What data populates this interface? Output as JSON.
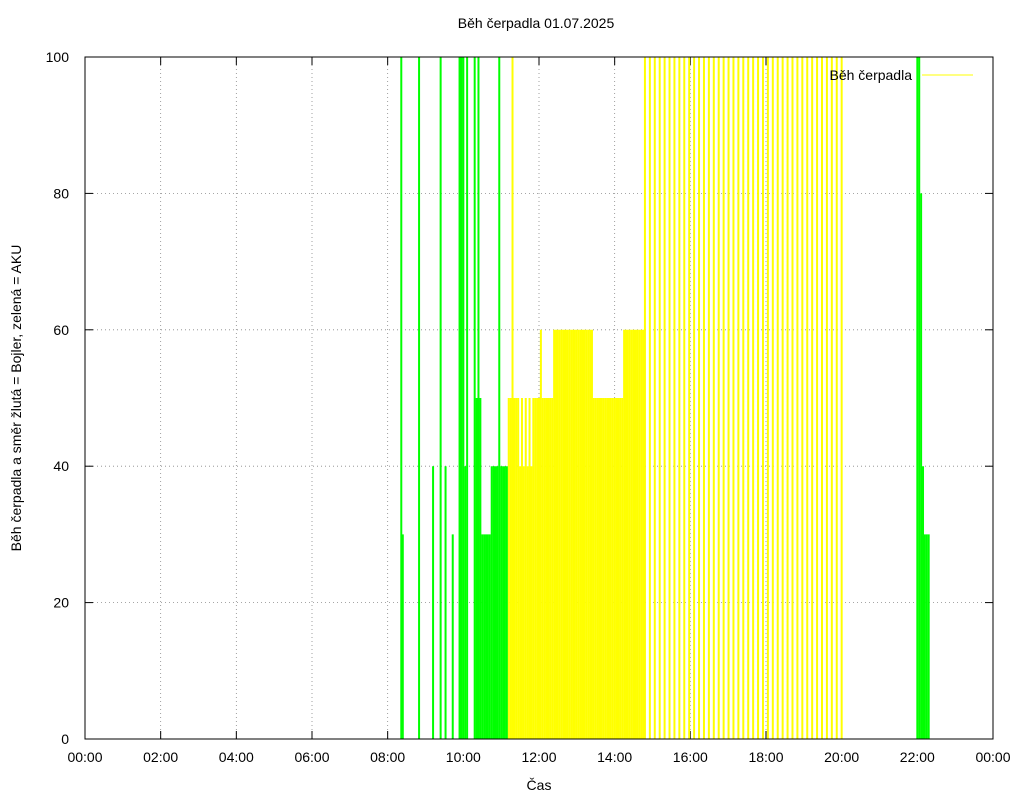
{
  "chart_data": {
    "type": "impulse",
    "title": "Běh čerpadla 01.07.2025",
    "xlabel": "Čas",
    "ylabel": "Běh čerpadla a směr žlutá = Bojler, zelená = AKU",
    "xlim": [
      0,
      24
    ],
    "xticks": [
      {
        "value": 0,
        "label": "00:00"
      },
      {
        "value": 2,
        "label": "02:00"
      },
      {
        "value": 4,
        "label": "04:00"
      },
      {
        "value": 6,
        "label": "06:00"
      },
      {
        "value": 8,
        "label": "08:00"
      },
      {
        "value": 10,
        "label": "10:00"
      },
      {
        "value": 12,
        "label": "12:00"
      },
      {
        "value": 14,
        "label": "14:00"
      },
      {
        "value": 16,
        "label": "16:00"
      },
      {
        "value": 18,
        "label": "18:00"
      },
      {
        "value": 20,
        "label": "20:00"
      },
      {
        "value": 22,
        "label": "22:00"
      },
      {
        "value": 24,
        "label": "00:00"
      }
    ],
    "ylim": [
      0,
      100
    ],
    "yticks": [
      0,
      20,
      40,
      60,
      80,
      100
    ],
    "grid": true,
    "legend": "top-right",
    "series": [
      {
        "name": "Běh čerpadla",
        "color": "#ffff00",
        "x": [
          11.2,
          11.25,
          11.3,
          11.35,
          11.4,
          11.45,
          11.5,
          11.55,
          11.6,
          11.65,
          11.7,
          11.75,
          11.8,
          11.85,
          11.9,
          11.95,
          12.0,
          12.05,
          12.1,
          12.15,
          12.2,
          12.25,
          12.3,
          12.35,
          12.4,
          12.45,
          12.5,
          12.55,
          12.6,
          12.65,
          12.7,
          12.75,
          12.8,
          12.85,
          12.9,
          12.95,
          13.0,
          13.05,
          13.1,
          13.15,
          13.2,
          13.25,
          13.3,
          13.35,
          13.4,
          13.45,
          13.5,
          13.55,
          13.6,
          13.65,
          13.7,
          13.75,
          13.8,
          13.85,
          13.9,
          13.95,
          14.0,
          14.05,
          14.1,
          14.15,
          14.2,
          14.25,
          14.3,
          14.35,
          14.4,
          14.45,
          14.5,
          14.55,
          14.6,
          14.65,
          14.7,
          14.75,
          14.8,
          14.93,
          15.06,
          15.19,
          15.32,
          15.45,
          15.58,
          15.71,
          15.84,
          15.97,
          16.1,
          16.23,
          16.36,
          16.49,
          16.62,
          16.75,
          16.88,
          17.01,
          17.14,
          17.27,
          17.4,
          17.53,
          17.66,
          17.79,
          17.92,
          18.05,
          18.18,
          18.31,
          18.44,
          18.57,
          18.7,
          18.83,
          18.96,
          19.09,
          19.22,
          19.35,
          19.48,
          19.61,
          19.74,
          19.87,
          20.0
        ],
        "values": [
          50,
          50,
          100,
          50,
          50,
          50,
          40,
          50,
          40,
          50,
          40,
          50,
          40,
          50,
          50,
          50,
          50,
          60,
          50,
          50,
          50,
          50,
          50,
          50,
          60,
          60,
          60,
          60,
          60,
          60,
          60,
          60,
          60,
          60,
          60,
          60,
          60,
          60,
          60,
          60,
          60,
          60,
          60,
          60,
          60,
          50,
          50,
          50,
          50,
          50,
          50,
          50,
          50,
          50,
          50,
          50,
          50,
          50,
          50,
          50,
          50,
          60,
          60,
          60,
          60,
          60,
          60,
          60,
          60,
          60,
          60,
          60,
          100,
          100,
          100,
          100,
          100,
          100,
          100,
          100,
          100,
          100,
          100,
          100,
          100,
          100,
          100,
          100,
          100,
          100,
          100,
          100,
          100,
          100,
          100,
          100,
          100,
          100,
          100,
          100,
          100,
          100,
          100,
          100,
          100,
          100,
          100,
          100,
          100,
          100,
          100,
          100,
          100
        ]
      },
      {
        "color": "#00ff00",
        "x": [
          8.36,
          8.4,
          8.83,
          9.2,
          9.4,
          9.53,
          9.72,
          9.9,
          9.95,
          10.0,
          10.05,
          10.1,
          10.3,
          10.35,
          10.4,
          10.45,
          10.5,
          10.55,
          10.6,
          10.65,
          10.7,
          10.75,
          10.8,
          10.85,
          10.9,
          10.95,
          11.0,
          11.05,
          11.1,
          11.15,
          22.0,
          22.05,
          22.1,
          22.15,
          22.2,
          22.25,
          22.3
        ],
        "values": [
          100,
          30,
          100,
          40,
          100,
          40,
          30,
          100,
          100,
          100,
          40,
          100,
          100,
          50,
          100,
          50,
          30,
          30,
          30,
          30,
          30,
          40,
          40,
          40,
          40,
          100,
          40,
          40,
          40,
          40,
          100,
          100,
          80,
          40,
          30,
          30,
          30
        ]
      }
    ]
  }
}
